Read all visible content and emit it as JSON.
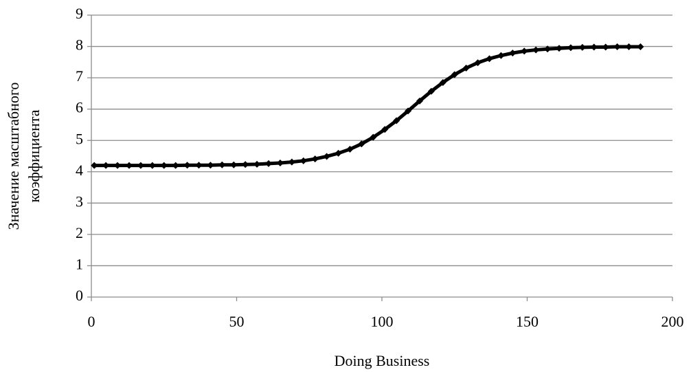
{
  "chart_data": {
    "type": "line",
    "xlabel": "Doing Business",
    "ylabel": [
      "Значение масштабного",
      "коэффициента"
    ],
    "x": [
      1,
      5,
      9,
      13,
      17,
      21,
      25,
      29,
      33,
      37,
      41,
      45,
      49,
      53,
      57,
      61,
      65,
      69,
      73,
      77,
      81,
      85,
      89,
      93,
      97,
      101,
      105,
      109,
      113,
      117,
      121,
      125,
      129,
      133,
      137,
      141,
      145,
      149,
      153,
      157,
      161,
      165,
      169,
      173,
      177,
      181,
      185,
      189
    ],
    "series": [
      {
        "color": "#000000",
        "marker": "diamond",
        "values": [
          4.2,
          4.2,
          4.2,
          4.2,
          4.2,
          4.2,
          4.2,
          4.2,
          4.21,
          4.21,
          4.21,
          4.22,
          4.22,
          4.23,
          4.24,
          4.26,
          4.28,
          4.31,
          4.35,
          4.41,
          4.49,
          4.59,
          4.72,
          4.89,
          5.1,
          5.35,
          5.63,
          5.94,
          6.26,
          6.57,
          6.85,
          7.1,
          7.31,
          7.48,
          7.61,
          7.71,
          7.79,
          7.85,
          7.89,
          7.92,
          7.94,
          7.96,
          7.97,
          7.98,
          7.98,
          7.99,
          7.99,
          7.99
        ]
      }
    ],
    "xlim": [
      0,
      200
    ],
    "xticks": [
      0,
      50,
      100,
      150,
      200
    ],
    "ylim": [
      0,
      9
    ],
    "yticks": [
      0,
      1,
      2,
      3,
      4,
      5,
      6,
      7,
      8,
      9
    ],
    "grid": true
  }
}
